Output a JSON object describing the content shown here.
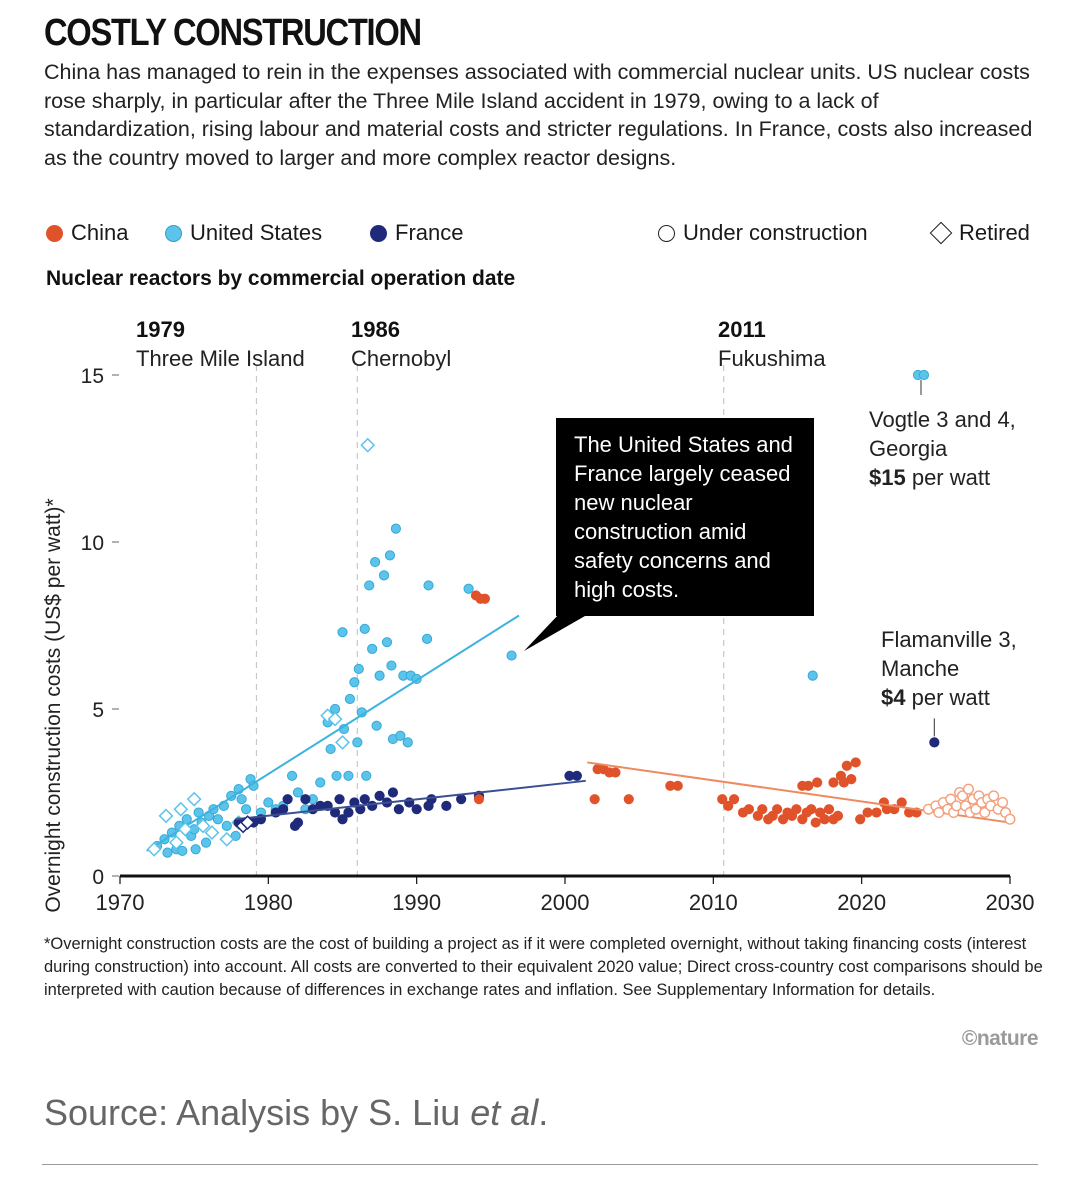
{
  "header": {
    "title": "COSTLY CONSTRUCTION",
    "subtitle": "China has managed to rein in the expenses associated with commercial nuclear units. US nuclear costs rose sharply, in particular after the Three Mile Island accident in 1979, owing to a lack of standardization, rising labour and material costs and stricter regulations. In France, costs also increased as the country moved to larger and more complex reactor designs."
  },
  "legend": {
    "china": "China",
    "us": "United States",
    "france": "France",
    "under_construction": "Under construction",
    "retired": "Retired"
  },
  "chart_heading": "Nuclear reactors by commercial operation date",
  "colors": {
    "china": "#e0532a",
    "us": "#5cc4ea",
    "france": "#1f2a7a",
    "china_line": "#ee8a5e",
    "us_line": "#3bb3df",
    "france_line": "#3b4f92"
  },
  "chart_data": {
    "type": "scatter",
    "xlabel": "",
    "ylabel": "Overnight construction costs (US$ per watt)*",
    "xlim": [
      1970,
      2030
    ],
    "ylim": [
      0,
      15
    ],
    "x_ticks": [
      1970,
      1980,
      1990,
      2000,
      2010,
      2020,
      2030
    ],
    "x_tick_labels": [
      "1970",
      "1980",
      "1990",
      "2000",
      "2010",
      "2020",
      "2030"
    ],
    "y_ticks": [
      0,
      5,
      10,
      15
    ],
    "y_tick_labels": [
      "0",
      "5",
      "10",
      "15"
    ],
    "events": [
      {
        "year": 1979,
        "year_label": "1979",
        "label": "Three Mile Island",
        "x": 1979.2
      },
      {
        "year": 1986,
        "year_label": "1986",
        "label": "Chernobyl",
        "x": 1986.0
      },
      {
        "year": 2011,
        "year_label": "2011",
        "label": "Fukushima",
        "x": 2010.7
      }
    ],
    "series": [
      {
        "name": "United States",
        "color_key": "us",
        "trend": [
          [
            1971.8,
            0.75
          ],
          [
            1996.9,
            7.8
          ]
        ],
        "points": [
          [
            1972.5,
            0.9
          ],
          [
            1973.0,
            1.1
          ],
          [
            1973.2,
            0.7
          ],
          [
            1973.5,
            1.3
          ],
          [
            1973.8,
            0.8
          ],
          [
            1974.0,
            1.5
          ],
          [
            1974.2,
            0.75
          ],
          [
            1974.5,
            1.7
          ],
          [
            1974.8,
            1.2
          ],
          [
            1975.0,
            1.4
          ],
          [
            1975.1,
            0.8
          ],
          [
            1975.3,
            1.9
          ],
          [
            1975.5,
            1.6
          ],
          [
            1975.8,
            1.0
          ],
          [
            1976.0,
            1.8
          ],
          [
            1976.3,
            2.0
          ],
          [
            1976.6,
            1.7
          ],
          [
            1977.0,
            2.1
          ],
          [
            1977.2,
            1.5
          ],
          [
            1977.5,
            2.4
          ],
          [
            1977.8,
            1.2
          ],
          [
            1978.0,
            2.6
          ],
          [
            1978.2,
            2.3
          ],
          [
            1978.5,
            2.0
          ],
          [
            1978.8,
            2.9
          ],
          [
            1979.0,
            2.7
          ],
          [
            1979.5,
            1.9
          ],
          [
            1980.0,
            2.2
          ],
          [
            1980.5,
            2.0
          ],
          [
            1981.0,
            2.1
          ],
          [
            1981.6,
            3.0
          ],
          [
            1982.0,
            2.5
          ],
          [
            1982.5,
            2.0
          ],
          [
            1983.0,
            2.3
          ],
          [
            1983.5,
            2.8
          ],
          [
            1984.0,
            4.6
          ],
          [
            1984.2,
            3.8
          ],
          [
            1984.5,
            5.0
          ],
          [
            1984.6,
            3.0
          ],
          [
            1985.0,
            7.3
          ],
          [
            1985.1,
            4.4
          ],
          [
            1985.4,
            3.0
          ],
          [
            1985.5,
            5.3
          ],
          [
            1985.8,
            5.8
          ],
          [
            1986.0,
            4.0
          ],
          [
            1986.1,
            6.2
          ],
          [
            1986.3,
            4.9
          ],
          [
            1986.5,
            7.4
          ],
          [
            1986.6,
            3.0
          ],
          [
            1986.8,
            8.7
          ],
          [
            1987.0,
            6.8
          ],
          [
            1987.2,
            9.4
          ],
          [
            1987.3,
            4.5
          ],
          [
            1987.5,
            6.0
          ],
          [
            1987.8,
            9.0
          ],
          [
            1988.0,
            7.0
          ],
          [
            1988.2,
            9.6
          ],
          [
            1988.3,
            6.3
          ],
          [
            1988.4,
            4.1
          ],
          [
            1988.6,
            10.4
          ],
          [
            1988.9,
            4.2
          ],
          [
            1989.1,
            6.0
          ],
          [
            1989.4,
            4.0
          ],
          [
            1989.6,
            6.0
          ],
          [
            1990.0,
            5.9
          ],
          [
            1990.7,
            7.1
          ],
          [
            1990.8,
            8.7
          ],
          [
            1993.5,
            8.6
          ],
          [
            1996.4,
            6.6
          ],
          [
            2016.7,
            6.0
          ]
        ]
      },
      {
        "name": "United States (under construction)",
        "color_key": "us",
        "points": [
          [
            2023.8,
            15.0
          ],
          [
            2024.2,
            15.0
          ]
        ]
      },
      {
        "name": "United States (retired)",
        "color_key": "us",
        "points": [
          [
            1972.3,
            0.8
          ],
          [
            1973.1,
            1.8
          ],
          [
            1973.8,
            1.0
          ],
          [
            1974.1,
            2.0
          ],
          [
            1974.4,
            1.4
          ],
          [
            1975.0,
            2.3
          ],
          [
            1975.6,
            1.5
          ],
          [
            1976.2,
            1.3
          ],
          [
            1977.2,
            1.1
          ],
          [
            1978.0,
            1.6
          ],
          [
            1984.0,
            4.8
          ],
          [
            1984.5,
            4.7
          ],
          [
            1985.0,
            4.0
          ],
          [
            1986.7,
            12.9
          ]
        ]
      },
      {
        "name": "France",
        "color_key": "france",
        "trend": [
          [
            1977.8,
            1.7
          ],
          [
            2001.4,
            2.85
          ]
        ],
        "points": [
          [
            1978.0,
            1.6
          ],
          [
            1979.0,
            1.6
          ],
          [
            1979.5,
            1.7
          ],
          [
            1980.5,
            1.9
          ],
          [
            1981.0,
            2.0
          ],
          [
            1981.3,
            2.3
          ],
          [
            1981.8,
            1.5
          ],
          [
            1982.0,
            1.6
          ],
          [
            1982.5,
            2.3
          ],
          [
            1983.0,
            2.0
          ],
          [
            1983.5,
            2.1
          ],
          [
            1984.0,
            2.1
          ],
          [
            1984.5,
            1.9
          ],
          [
            1984.8,
            2.3
          ],
          [
            1985.0,
            1.7
          ],
          [
            1985.4,
            1.9
          ],
          [
            1985.8,
            2.2
          ],
          [
            1986.2,
            2.0
          ],
          [
            1986.5,
            2.3
          ],
          [
            1987.0,
            2.1
          ],
          [
            1987.5,
            2.4
          ],
          [
            1988.0,
            2.2
          ],
          [
            1988.4,
            2.5
          ],
          [
            1988.8,
            2.0
          ],
          [
            1989.5,
            2.2
          ],
          [
            1990.0,
            2.0
          ],
          [
            1990.8,
            2.1
          ],
          [
            1991.0,
            2.3
          ],
          [
            1992.0,
            2.1
          ],
          [
            1993.0,
            2.3
          ],
          [
            1994.2,
            2.4
          ],
          [
            2000.3,
            3.0
          ],
          [
            2000.8,
            3.0
          ]
        ]
      },
      {
        "name": "France (under construction)",
        "color_key": "france",
        "points": [
          [
            2024.9,
            4.0
          ]
        ]
      },
      {
        "name": "France (retired)",
        "color_key": "france",
        "points": [
          [
            1978.3,
            1.5
          ],
          [
            1978.6,
            1.6
          ]
        ]
      },
      {
        "name": "China",
        "color_key": "china",
        "trend": [
          [
            2001.5,
            3.4
          ],
          [
            2030.0,
            1.6
          ]
        ],
        "points": [
          [
            1994.0,
            8.4
          ],
          [
            1994.3,
            8.3
          ],
          [
            1994.6,
            8.3
          ],
          [
            1994.2,
            2.3
          ],
          [
            2002.0,
            2.3
          ],
          [
            2002.2,
            3.2
          ],
          [
            2002.6,
            3.2
          ],
          [
            2003.0,
            3.1
          ],
          [
            2003.4,
            3.1
          ],
          [
            2004.3,
            2.3
          ],
          [
            2007.1,
            2.7
          ],
          [
            2007.6,
            2.7
          ],
          [
            2010.6,
            2.3
          ],
          [
            2011.0,
            2.1
          ],
          [
            2011.4,
            2.3
          ],
          [
            2012.0,
            1.9
          ],
          [
            2012.4,
            2.0
          ],
          [
            2013.0,
            1.8
          ],
          [
            2013.3,
            2.0
          ],
          [
            2013.7,
            1.7
          ],
          [
            2014.0,
            1.8
          ],
          [
            2014.3,
            2.0
          ],
          [
            2014.7,
            1.7
          ],
          [
            2015.0,
            1.9
          ],
          [
            2015.3,
            1.8
          ],
          [
            2015.6,
            2.0
          ],
          [
            2016.0,
            1.7
          ],
          [
            2016.3,
            1.9
          ],
          [
            2016.6,
            2.0
          ],
          [
            2016.9,
            1.6
          ],
          [
            2017.2,
            1.9
          ],
          [
            2017.5,
            1.7
          ],
          [
            2017.8,
            2.0
          ],
          [
            2018.1,
            1.7
          ],
          [
            2018.4,
            1.8
          ],
          [
            2016.0,
            2.7
          ],
          [
            2016.4,
            2.7
          ],
          [
            2017.0,
            2.8
          ],
          [
            2018.1,
            2.8
          ],
          [
            2018.6,
            3.0
          ],
          [
            2018.8,
            2.8
          ],
          [
            2019.0,
            3.3
          ],
          [
            2019.3,
            2.9
          ],
          [
            2019.6,
            3.4
          ],
          [
            2019.9,
            1.7
          ],
          [
            2020.4,
            1.9
          ],
          [
            2021.0,
            1.9
          ],
          [
            2021.5,
            2.2
          ],
          [
            2021.7,
            2.0
          ],
          [
            2022.2,
            2.0
          ],
          [
            2022.7,
            2.2
          ],
          [
            2023.2,
            1.9
          ],
          [
            2023.7,
            1.9
          ]
        ]
      },
      {
        "name": "China (under construction)",
        "color_key": "china",
        "points": [
          [
            2024.5,
            2.0
          ],
          [
            2025.0,
            2.1
          ],
          [
            2025.2,
            1.9
          ],
          [
            2025.5,
            2.2
          ],
          [
            2025.8,
            2.0
          ],
          [
            2026.0,
            2.3
          ],
          [
            2026.2,
            1.9
          ],
          [
            2026.4,
            2.1
          ],
          [
            2026.6,
            2.5
          ],
          [
            2026.8,
            2.4
          ],
          [
            2027.0,
            2.1
          ],
          [
            2027.2,
            2.6
          ],
          [
            2027.3,
            1.9
          ],
          [
            2027.5,
            2.3
          ],
          [
            2027.7,
            2.0
          ],
          [
            2027.9,
            2.4
          ],
          [
            2028.1,
            2.2
          ],
          [
            2028.3,
            1.9
          ],
          [
            2028.5,
            2.3
          ],
          [
            2028.7,
            2.1
          ],
          [
            2028.9,
            2.4
          ],
          [
            2029.2,
            2.0
          ],
          [
            2029.5,
            2.2
          ],
          [
            2029.7,
            1.9
          ],
          [
            2030.0,
            1.7
          ]
        ]
      }
    ],
    "annotations": [
      {
        "lines": [
          "Vogtle 3 and 4,",
          "Georgia"
        ],
        "value_bold": "$15",
        "value_rest": " per watt"
      },
      {
        "lines": [
          "Flamanville 3,",
          "Manche"
        ],
        "value_bold": "$4",
        "value_rest": " per watt"
      }
    ],
    "callout": "The United States and France largely ceased new nuclear construction amid safety concerns and high costs."
  },
  "footnote": "*Overnight construction costs are the cost of building a project as if it were completed overnight, without taking financing costs (interest during construction) into account. All costs are converted to their equivalent 2020 value; Direct cross-country cost comparisons should be interpreted with caution because of differences in exchange rates and inflation. See Supplementary Information for details.",
  "credit": "©nature",
  "source": {
    "prefix": "Source: Analysis by S. Liu ",
    "italic": "et al",
    "suffix": "."
  }
}
